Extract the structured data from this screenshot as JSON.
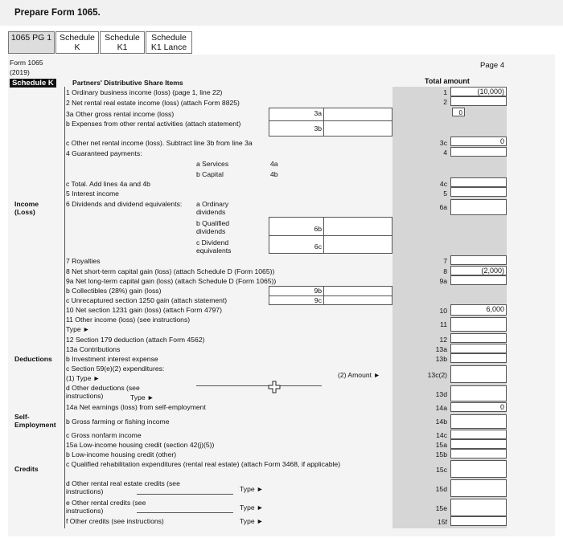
{
  "header": {
    "title": "Prepare Form 1065."
  },
  "tabs": [
    {
      "label": "1065 PG 1"
    },
    {
      "label": "Schedule K"
    },
    {
      "label": "Schedule K1"
    },
    {
      "label": "Schedule K1 Lance"
    }
  ],
  "form": {
    "name": "Form 1065",
    "year": "(2019)",
    "page": "Page 4",
    "schedule": "Schedule K",
    "heading": "Partners' Distributive Share Items",
    "total_heading": "Total amount"
  },
  "sections": {
    "income": "Income (Loss)",
    "deductions": "Deductions",
    "self_employment": "Self-Employment",
    "credits": "Credits"
  },
  "lines": [
    {
      "id": "1",
      "text": "1  Ordinary business income (loss) (page 1, line 22)",
      "num": "1",
      "value": "(10,000)"
    },
    {
      "id": "2",
      "text": "2  Net rental real estate income (loss) (attach Form 8825)",
      "num": "2",
      "value": ""
    },
    {
      "id": "3a",
      "text": "3a Other gross rental income (loss)",
      "num": "3a",
      "value": "0"
    },
    {
      "id": "3b",
      "text": "b  Expenses from other rental activities (attach statement)",
      "num": "3b",
      "value": ""
    },
    {
      "id": "3c",
      "text": "c  Other net rental income (loss). Subtract line 3b from line 3a",
      "num": "3c",
      "value": "0"
    },
    {
      "id": "4",
      "text": "4  Guaranteed payments:",
      "num": "4",
      "value": ""
    },
    {
      "id": "4a",
      "text": "a Services",
      "num": "4a",
      "value": ""
    },
    {
      "id": "4b",
      "text": "b Capital",
      "num": "4b",
      "value": ""
    },
    {
      "id": "4c",
      "text": "c  Total. Add lines 4a and 4b",
      "num": "4c",
      "value": ""
    },
    {
      "id": "5",
      "text": "5  Interest income",
      "num": "5",
      "value": ""
    },
    {
      "id": "6",
      "text": "6  Dividends and dividend equivalents:",
      "num": "6a",
      "value": ""
    },
    {
      "id": "6a",
      "text": "a Ordinary dividends",
      "num": "6a",
      "value": ""
    },
    {
      "id": "6b",
      "text": "b Qualified dividends",
      "num": "6b",
      "value": ""
    },
    {
      "id": "6c",
      "text": "c Dividend equivalents",
      "num": "6c",
      "value": ""
    },
    {
      "id": "7",
      "text": "7  Royalties",
      "num": "7",
      "value": ""
    },
    {
      "id": "8",
      "text": "8  Net short-term capital gain (loss) (attach Schedule D (Form 1065))",
      "num": "8",
      "value": "(2,000)"
    },
    {
      "id": "9a",
      "text": "9a Net long-term capital gain (loss) (attach Schedule D (Form 1065))",
      "num": "9a",
      "value": ""
    },
    {
      "id": "9b",
      "text": "b  Collectibles (28%) gain (loss)",
      "num": "9b",
      "value": ""
    },
    {
      "id": "9c",
      "text": "c  Unrecaptured section 1250 gain (attach statement)",
      "num": "9c",
      "value": ""
    },
    {
      "id": "10",
      "text": "10 Net section 1231 gain (loss) (attach Form 4797)",
      "num": "10",
      "value": "6,000"
    },
    {
      "id": "11",
      "text": "11 Other income (loss) (see instructions)",
      "num": "11",
      "value": ""
    },
    {
      "id": "11t",
      "text": "Type ►",
      "num": "",
      "value": ""
    },
    {
      "id": "12",
      "text": "12 Section 179 deduction (attach Form 4562)",
      "num": "12",
      "value": ""
    },
    {
      "id": "13a",
      "text": "13a Contributions",
      "num": "13a",
      "value": ""
    },
    {
      "id": "13b",
      "text": "b   Investment interest expense",
      "num": "13b",
      "value": ""
    },
    {
      "id": "13c",
      "text": "c   Section 59(e)(2) expenditures:",
      "num": "13c(2)",
      "value": ""
    },
    {
      "id": "13c1",
      "text": "(1) Type ►",
      "num": "",
      "value": ""
    },
    {
      "id": "13c2",
      "text": "(2) Amount ►",
      "num": "",
      "value": ""
    },
    {
      "id": "13d",
      "text": "d   Other deductions (see instructions)",
      "num": "13d",
      "value": ""
    },
    {
      "id": "13dt",
      "text": "Type ►",
      "num": "",
      "value": ""
    },
    {
      "id": "14a",
      "text": "14a Net earnings (loss) from self-employment",
      "num": "14a",
      "value": "0"
    },
    {
      "id": "14b",
      "text": "b   Gross farming or fishing income",
      "num": "14b",
      "value": ""
    },
    {
      "id": "14c",
      "text": "c   Gross nonfarm income",
      "num": "14c",
      "value": ""
    },
    {
      "id": "15a",
      "text": "15a Low-income housing credit (section 42(j)(5))",
      "num": "15a",
      "value": ""
    },
    {
      "id": "15b",
      "text": "b   Low-income housing credit (other)",
      "num": "15b",
      "value": ""
    },
    {
      "id": "15c",
      "text": "c   Qualified rehabilitation expenditures (rental real estate) (attach Form 3468, if applicable)",
      "num": "15c",
      "value": ""
    },
    {
      "id": "15d",
      "text": "d   Other rental real estate credits (see instructions)",
      "num": "15d",
      "value": ""
    },
    {
      "id": "15e",
      "text": "e   Other rental credits (see instructions)",
      "num": "15e",
      "value": ""
    },
    {
      "id": "15f",
      "text": "f   Other credits (see instructions)",
      "num": "15f",
      "value": ""
    }
  ],
  "type_label": "Type ►"
}
